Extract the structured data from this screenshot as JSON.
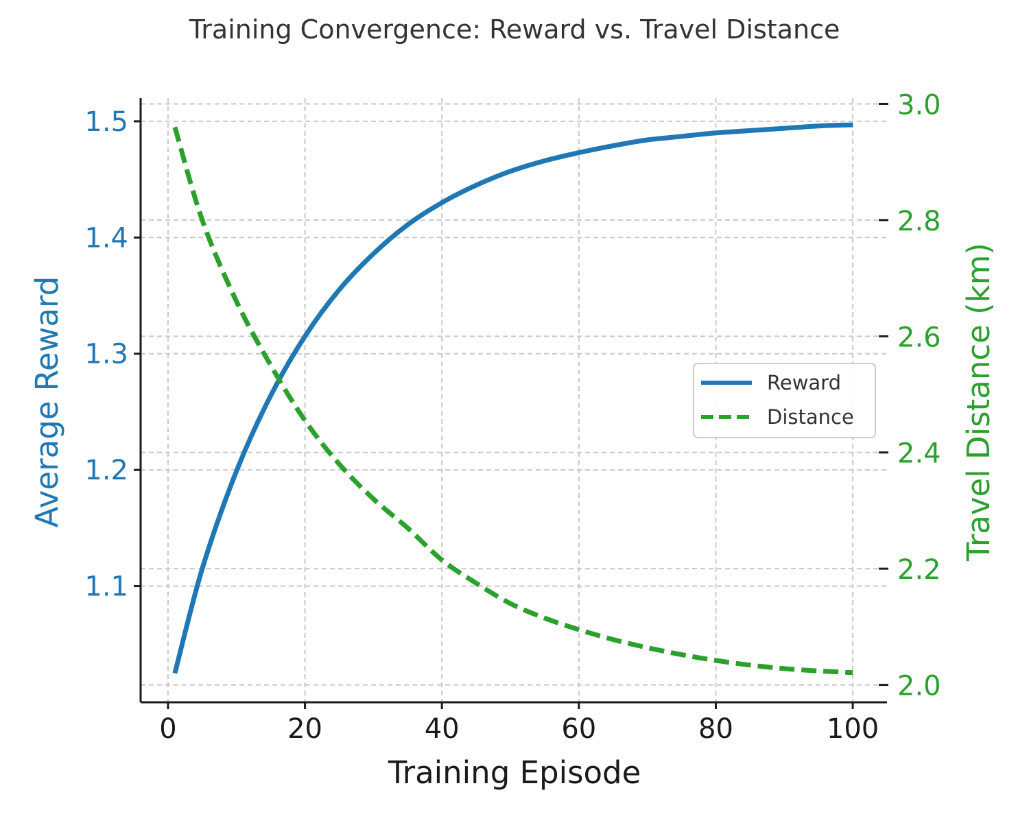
{
  "chart_data": {
    "type": "line",
    "title": "Training Convergence: Reward vs. Travel Distance",
    "xlabel": "Training Episode",
    "ylabel_left": "Average Reward",
    "ylabel_right": "Travel Distance (km)",
    "xlim": [
      -4,
      105
    ],
    "ylim_left": [
      1.0,
      1.52
    ],
    "ylim_right": [
      1.97,
      3.01
    ],
    "x_ticks": [
      0,
      20,
      40,
      60,
      80,
      100
    ],
    "y_left_ticks": [
      "1.1",
      "1.2",
      "1.3",
      "1.4",
      "1.5"
    ],
    "y_right_ticks": [
      "2.0",
      "2.2",
      "2.4",
      "2.6",
      "2.8",
      "3.0"
    ],
    "grid": true,
    "legend_position": "center-right",
    "x": [
      1,
      5,
      10,
      15,
      20,
      25,
      30,
      35,
      40,
      45,
      50,
      55,
      60,
      65,
      70,
      75,
      80,
      85,
      90,
      95,
      100
    ],
    "series": [
      {
        "name": "Reward",
        "axis": "left",
        "style": "solid",
        "color": "#1f77b4",
        "values": [
          1.025,
          1.115,
          1.199,
          1.264,
          1.315,
          1.355,
          1.386,
          1.411,
          1.43,
          1.445,
          1.457,
          1.466,
          1.473,
          1.479,
          1.484,
          1.487,
          1.49,
          1.492,
          1.494,
          1.496,
          1.497
        ]
      },
      {
        "name": "Distance",
        "axis": "right",
        "style": "dashed",
        "color": "#2ca02c",
        "values": [
          2.96,
          2.8,
          2.66,
          2.55,
          2.455,
          2.38,
          2.32,
          2.27,
          2.215,
          2.175,
          2.14,
          2.115,
          2.095,
          2.078,
          2.064,
          2.052,
          2.042,
          2.034,
          2.028,
          2.024,
          2.021
        ]
      }
    ]
  }
}
